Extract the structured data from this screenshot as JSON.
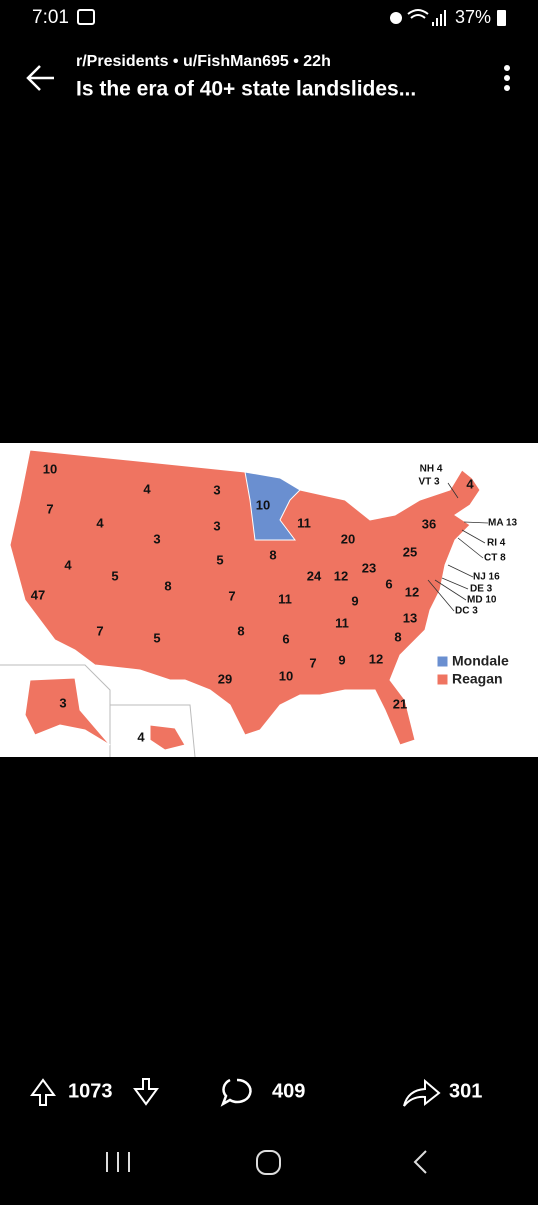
{
  "status_bar": {
    "time": "7:01",
    "battery": "37%"
  },
  "post": {
    "meta": "r/Presidents • u/FishMan695 • 22h",
    "title": "Is the era of 40+ state landslides..."
  },
  "map": {
    "labels": [
      "10",
      "4",
      "3",
      "7",
      "4",
      "3",
      "3",
      "10",
      "11",
      "20",
      "36",
      "4",
      "NH 4",
      "VT 3",
      "MA 13",
      "RI 4",
      "CT 8",
      "NJ 16",
      "DE 3",
      "MD 10",
      "DC 3",
      "4",
      "5",
      "8",
      "5",
      "8",
      "7",
      "11",
      "24",
      "12",
      "23",
      "25",
      "6",
      "12",
      "47",
      "9",
      "11",
      "13",
      "8",
      "7",
      "5",
      "8",
      "6",
      "7",
      "9",
      "12",
      "10",
      "29",
      "21",
      "3",
      "4"
    ],
    "legend": [
      {
        "name": "Mondale",
        "color": "#6a8fd0"
      },
      {
        "name": "Reagan",
        "color": "#ef7461"
      }
    ]
  },
  "actions": {
    "upvotes": "1073",
    "comments": "409",
    "shares": "301"
  }
}
